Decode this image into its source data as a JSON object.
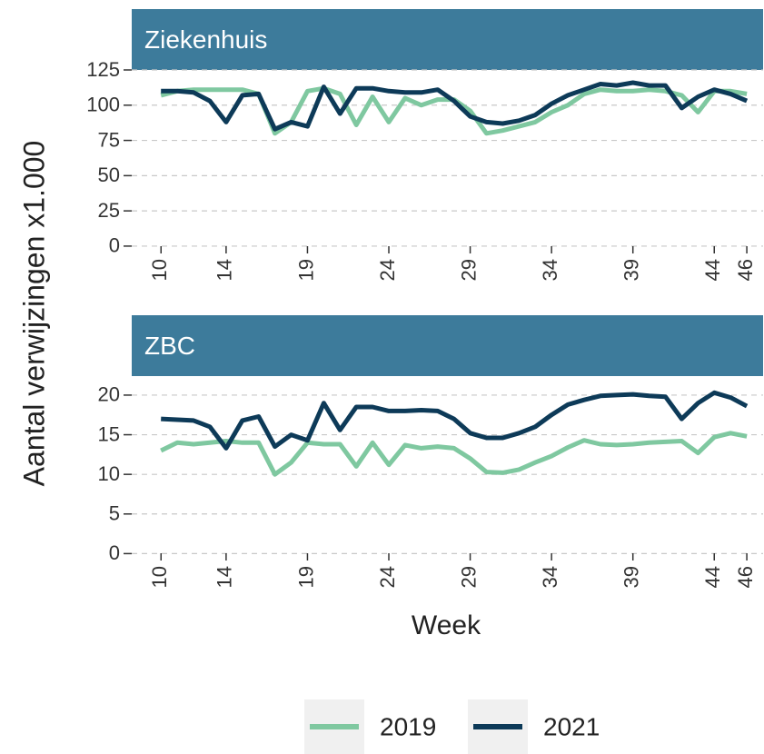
{
  "chart_data": [
    {
      "type": "line",
      "title": "Ziekenhuis",
      "y_label": "Aantal verwijzingen x1.000",
      "x": [
        10,
        11,
        12,
        13,
        14,
        15,
        16,
        17,
        18,
        19,
        20,
        21,
        22,
        23,
        24,
        25,
        26,
        27,
        28,
        29,
        30,
        31,
        32,
        33,
        34,
        35,
        36,
        37,
        38,
        39,
        40,
        41,
        42,
        43,
        44,
        45,
        46
      ],
      "xlim": [
        8.2,
        47
      ],
      "xticks": [
        10,
        14,
        19,
        24,
        29,
        34,
        39,
        44,
        46
      ],
      "ylim": [
        -6.5,
        125
      ],
      "yticks": [
        0,
        25,
        50,
        75,
        100,
        125
      ],
      "grid": true,
      "series": [
        {
          "name": "2019",
          "color": "#7fc8a0",
          "values": [
            107,
            110,
            111,
            111,
            111,
            111,
            108,
            80,
            88,
            110,
            112,
            108,
            86,
            106,
            88,
            105,
            100,
            104,
            104,
            96,
            80,
            82,
            85,
            88,
            95,
            100,
            108,
            111,
            110,
            110,
            111,
            110,
            107,
            95,
            110,
            110,
            108
          ]
        },
        {
          "name": "2021",
          "color": "#0d3a58",
          "values": [
            110,
            110,
            109,
            103,
            88,
            107,
            108,
            83,
            88,
            85,
            113,
            94,
            112,
            112,
            110,
            109,
            109,
            111,
            103,
            92,
            88,
            87,
            89,
            93,
            101,
            107,
            111,
            115,
            114,
            116,
            114,
            114,
            98,
            106,
            111,
            108,
            103
          ]
        }
      ]
    },
    {
      "type": "line",
      "title": "ZBC",
      "x_label": "Week",
      "x": [
        10,
        11,
        12,
        13,
        14,
        15,
        16,
        17,
        18,
        19,
        20,
        21,
        22,
        23,
        24,
        25,
        26,
        27,
        28,
        29,
        30,
        31,
        32,
        33,
        34,
        35,
        36,
        37,
        38,
        39,
        40,
        41,
        42,
        43,
        44,
        45,
        46
      ],
      "xlim": [
        8.2,
        47
      ],
      "xticks": [
        10,
        14,
        19,
        24,
        29,
        34,
        39,
        44,
        46
      ],
      "ylim": [
        -1.1,
        22.4
      ],
      "yticks": [
        0,
        5,
        10,
        15,
        20
      ],
      "grid": true,
      "series": [
        {
          "color": "#7fc8a0",
          "values": [
            13,
            14,
            13.8,
            14,
            14.2,
            14,
            14,
            10,
            11.5,
            14,
            13.8,
            13.8,
            11,
            14,
            11.2,
            13.7,
            13.3,
            13.5,
            13.3,
            12,
            10.3,
            10.2,
            10.6,
            11.5,
            12.3,
            13.4,
            14.3,
            13.8,
            13.7,
            13.8,
            14,
            14.1,
            14.2,
            12.7,
            14.7,
            15.2,
            14.8
          ]
        },
        {
          "color": "#0d3a58",
          "values": [
            17,
            16.9,
            16.8,
            16,
            13.3,
            16.8,
            17.3,
            13.5,
            15,
            14.3,
            19,
            15.6,
            18.5,
            18.5,
            18,
            18,
            18.1,
            18,
            17,
            15.2,
            14.6,
            14.6,
            15.2,
            16,
            17.5,
            18.8,
            19.4,
            19.9,
            20,
            20.1,
            19.9,
            19.8,
            17,
            19,
            20.3,
            19.7,
            18.6
          ]
        }
      ]
    }
  ]
}
